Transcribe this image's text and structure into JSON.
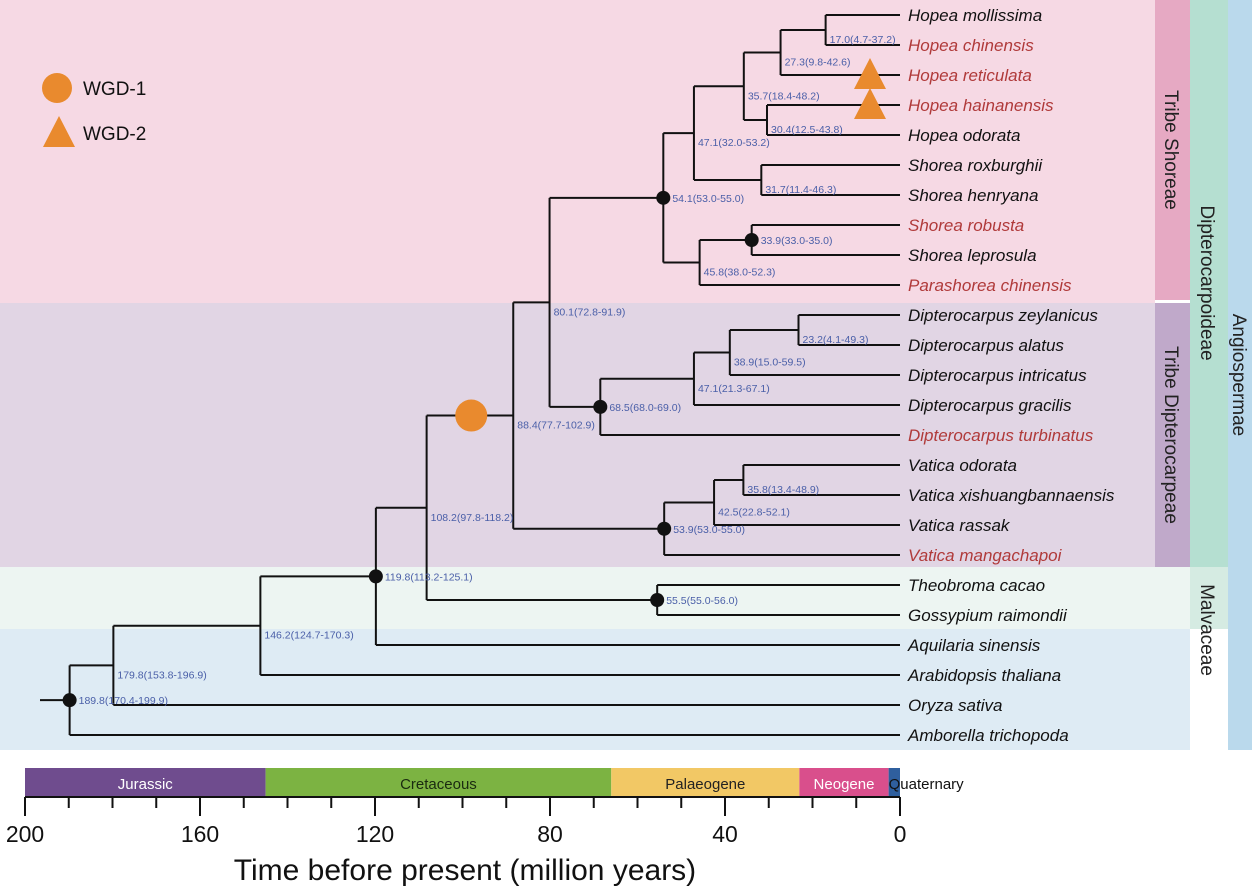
{
  "legend": [
    {
      "shape": "circle",
      "label": "WGD-1"
    },
    {
      "shape": "triangle",
      "label": "WGD-2"
    }
  ],
  "colors": {
    "wgd": "#e98a2e",
    "highlight_leaf": "#b03a3a",
    "normal_leaf": "#111111",
    "node_label": "#4a5fa8",
    "shoreae_bg": "#f6d9e4",
    "shoreae_bar": "#e6a9c3",
    "dipterocarpeae_bg": "#e1d5e4",
    "dipterocarpeae_bar": "#c0a9ca",
    "malvaceae_bg": "#edf5f2",
    "outgroup_bg": "#deebf4",
    "dipterocarpoideae_bar": "#b5dfd1",
    "malvaceae_bar": "#d5ebe2",
    "angiospermae_bar": "#bad9ec"
  },
  "clade_labels": {
    "tribe_shoreae": "Tribe Shoreae",
    "tribe_dipterocarpeae": "Tribe Dipterocarpeae",
    "dipterocarpoideae": "Dipterocarpoideae",
    "malvaceae": "Malvaceae",
    "angiospermae": "Angiospermae"
  },
  "tree": {
    "age": 189.8,
    "label": "189.8(170.4-199.9)",
    "calibrated": true,
    "children": [
      {
        "age": 179.8,
        "label": "179.8(153.8-196.9)",
        "children": [
          {
            "age": 146.2,
            "label": "146.2(124.7-170.3)",
            "children": [
              {
                "age": 119.8,
                "label": "119.8(113.2-125.1)",
                "calibrated": true,
                "children": [
                  {
                    "age": 108.2,
                    "label": "108.2(97.8-118.2)",
                    "children": [
                      {
                        "age": 88.4,
                        "label": "88.4(77.7-102.9)",
                        "wgd1_at": 98,
                        "children": [
                          {
                            "age": 80.1,
                            "label": "80.1(72.8-91.9)",
                            "children": [
                              {
                                "age": 54.1,
                                "label": "54.1(53.0-55.0)",
                                "calibrated": true,
                                "children": [
                                  {
                                    "age": 47.1,
                                    "label": "47.1(32.0-53.2)",
                                    "children": [
                                      {
                                        "age": 35.7,
                                        "label": "35.7(18.4-48.2)",
                                        "children": [
                                          {
                                            "age": 27.3,
                                            "label": "27.3(9.8-42.6)",
                                            "children": [
                                              {
                                                "age": 17.0,
                                                "label": "17.0(4.7-37.2)",
                                                "children": [
                                                  {
                                                    "name": "Hopea mollissima",
                                                    "highlight": false
                                                  },
                                                  {
                                                    "name": "Hopea chinensis",
                                                    "highlight": true
                                                  }
                                                ]
                                              },
                                              {
                                                "name": "Hopea reticulata",
                                                "highlight": true,
                                                "wgd2": true
                                              }
                                            ]
                                          },
                                          {
                                            "age": 30.4,
                                            "label": "30.4(12.5-43.8)",
                                            "children": [
                                              {
                                                "name": "Hopea hainanensis",
                                                "highlight": true,
                                                "wgd2": true
                                              },
                                              {
                                                "name": "Hopea odorata",
                                                "highlight": false
                                              }
                                            ]
                                          }
                                        ]
                                      },
                                      {
                                        "age": 31.7,
                                        "label": "31.7(11.4-46.3)",
                                        "children": [
                                          {
                                            "name": "Shorea roxburghii",
                                            "highlight": false
                                          },
                                          {
                                            "name": "Shorea henryana",
                                            "highlight": false
                                          }
                                        ]
                                      }
                                    ]
                                  },
                                  {
                                    "age": 45.8,
                                    "label": "45.8(38.0-52.3)",
                                    "children": [
                                      {
                                        "age": 33.9,
                                        "label": "33.9(33.0-35.0)",
                                        "calibrated": true,
                                        "children": [
                                          {
                                            "name": "Shorea robusta",
                                            "highlight": true
                                          },
                                          {
                                            "name": "Shorea leprosula",
                                            "highlight": false
                                          }
                                        ]
                                      },
                                      {
                                        "name": "Parashorea chinensis",
                                        "highlight": true
                                      }
                                    ]
                                  }
                                ]
                              },
                              {
                                "age": 68.5,
                                "label": "68.5(68.0-69.0)",
                                "calibrated": true,
                                "children": [
                                  {
                                    "age": 47.1,
                                    "label": "47.1(21.3-67.1)",
                                    "children": [
                                      {
                                        "age": 38.9,
                                        "label": "38.9(15.0-59.5)",
                                        "children": [
                                          {
                                            "age": 23.2,
                                            "label": "23.2(4.1-49.3)",
                                            "children": [
                                              {
                                                "name": "Dipterocarpus zeylanicus",
                                                "highlight": false
                                              },
                                              {
                                                "name": "Dipterocarpus alatus",
                                                "highlight": false
                                              }
                                            ]
                                          },
                                          {
                                            "name": "Dipterocarpus intricatus",
                                            "highlight": false
                                          }
                                        ]
                                      },
                                      {
                                        "name": "Dipterocarpus gracilis",
                                        "highlight": false
                                      }
                                    ]
                                  },
                                  {
                                    "name": "Dipterocarpus turbinatus",
                                    "highlight": true
                                  }
                                ]
                              }
                            ]
                          },
                          {
                            "age": 53.9,
                            "label": "53.9(53.0-55.0)",
                            "calibrated": true,
                            "children": [
                              {
                                "age": 42.5,
                                "label": "42.5(22.8-52.1)",
                                "children": [
                                  {
                                    "age": 35.8,
                                    "label": "35.8(13.4-48.9)",
                                    "children": [
                                      {
                                        "name": "Vatica odorata",
                                        "highlight": false
                                      },
                                      {
                                        "name": "Vatica xishuangbannaensis",
                                        "highlight": false
                                      }
                                    ]
                                  },
                                  {
                                    "name": "Vatica rassak",
                                    "highlight": false
                                  }
                                ]
                              },
                              {
                                "name": "Vatica mangachapoi",
                                "highlight": true
                              }
                            ]
                          }
                        ]
                      },
                      {
                        "age": 55.5,
                        "label": "55.5(55.0-56.0)",
                        "calibrated": true,
                        "children": [
                          {
                            "name": "Theobroma cacao",
                            "highlight": false
                          },
                          {
                            "name": "Gossypium raimondii",
                            "highlight": false
                          }
                        ]
                      }
                    ]
                  },
                  {
                    "name": "Aquilaria sinensis",
                    "highlight": false
                  }
                ]
              },
              {
                "name": "Arabidopsis thaliana",
                "highlight": false
              }
            ]
          },
          {
            "name": "Oryza sativa",
            "highlight": false
          }
        ]
      },
      {
        "name": "Amborella trichopoda",
        "highlight": false
      }
    ]
  },
  "axis": {
    "title": "Time before present (million years)",
    "range": [
      200,
      0
    ],
    "major_ticks": [
      200,
      160,
      120,
      80,
      40,
      0
    ],
    "minor_step": 10
  },
  "periods": [
    {
      "name": "Jurassic",
      "start": 200,
      "end": 145,
      "color": "#6f4c8e",
      "text": "#ffffff"
    },
    {
      "name": "Cretaceous",
      "start": 145,
      "end": 66,
      "color": "#7cb342",
      "text": "#1a2a10"
    },
    {
      "name": "Palaeogene",
      "start": 66,
      "end": 23,
      "color": "#f2c865",
      "text": "#222222"
    },
    {
      "name": "Neogene",
      "start": 23,
      "end": 2.6,
      "color": "#d94f8c",
      "text": "#ffffff"
    },
    {
      "name": "Quaternary",
      "start": 2.6,
      "end": 0,
      "color": "#2f5f9e",
      "text": "#111111"
    }
  ]
}
